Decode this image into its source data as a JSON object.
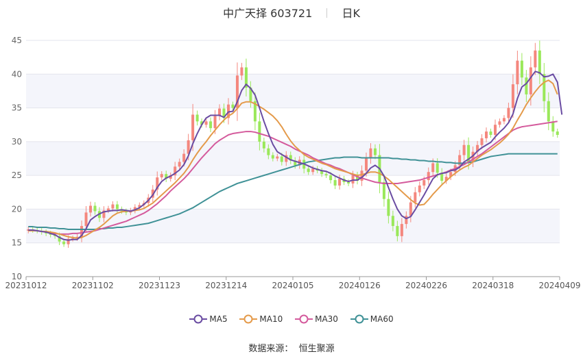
{
  "chart_data": {
    "type": "candlestick",
    "title_name": "中广天择",
    "title_code": "603721",
    "period": "日K",
    "ylim": [
      10,
      45
    ],
    "y_ticks": [
      10,
      15,
      20,
      25,
      30,
      35,
      40,
      45
    ],
    "x_tick_labels": [
      "20231012",
      "20231102",
      "20231123",
      "20231214",
      "20240105",
      "20240126",
      "20240226",
      "20240318",
      "20240409"
    ],
    "up_color": "#f4877e",
    "down_color": "#9ae85a",
    "close": [
      17.0,
      16.9,
      16.8,
      16.6,
      16.4,
      16.2,
      16.0,
      15.2,
      14.8,
      15.6,
      15.7,
      15.9,
      17.5,
      19.5,
      20.5,
      19.7,
      18.7,
      19.8,
      20.1,
      20.7,
      20.0,
      19.7,
      19.5,
      19.8,
      20.3,
      20.6,
      20.9,
      21.7,
      22.9,
      24.7,
      25.2,
      24.5,
      25.0,
      26.3,
      27.0,
      28.2,
      30.2,
      34.0,
      33.0,
      32.5,
      33.0,
      32.0,
      33.8,
      34.9,
      33.5,
      35.5,
      35.0,
      39.8,
      41.0,
      38.0,
      36.0,
      33.0,
      30.0,
      29.0,
      28.0,
      27.5,
      27.8,
      27.0,
      28.0,
      27.2,
      26.5,
      27.3,
      26.0,
      25.5,
      26.0,
      25.7,
      25.2,
      25.0,
      24.3,
      23.5,
      24.5,
      24.0,
      23.8,
      25.0,
      24.2,
      25.7,
      27.5,
      29.0,
      28.0,
      24.0,
      21.5,
      19.0,
      17.5,
      16.0,
      17.8,
      19.0,
      21.0,
      22.5,
      23.5,
      24.3,
      25.5,
      26.8,
      25.4,
      24.2,
      24.8,
      25.5,
      26.5,
      28.0,
      29.5,
      27.0,
      28.5,
      29.5,
      30.5,
      31.5,
      31.0,
      32.5,
      33.0,
      33.5,
      35.0,
      38.5,
      42.0,
      39.5,
      37.0,
      41.0,
      43.5,
      40.0,
      36.0,
      33.0,
      31.5,
      31.0
    ],
    "ma5": [
      16.9,
      16.9,
      16.8,
      16.7,
      16.6,
      16.4,
      16.2,
      15.8,
      15.5,
      15.4,
      15.5,
      15.5,
      16.1,
      17.1,
      18.4,
      18.9,
      19.3,
      19.6,
      19.7,
      19.8,
      19.8,
      19.9,
      19.8,
      19.7,
      19.9,
      20.2,
      20.7,
      21.3,
      22.1,
      23.2,
      24.1,
      24.6,
      24.9,
      25.3,
      25.8,
      26.6,
      27.9,
      29.7,
      31.2,
      32.5,
      33.5,
      33.9,
      33.9,
      33.9,
      33.6,
      34.4,
      34.5,
      35.9,
      37.6,
      38.5,
      37.9,
      36.9,
      35.0,
      33.0,
      31.2,
      29.6,
      28.5,
      28.1,
      27.7,
      27.3,
      27.1,
      26.9,
      26.7,
      26.4,
      26.1,
      25.9,
      25.7,
      25.6,
      25.3,
      24.9,
      24.6,
      24.3,
      24.1,
      24.3,
      24.3,
      24.7,
      25.3,
      26.1,
      26.5,
      26.0,
      24.9,
      23.2,
      21.5,
      20.0,
      19.0,
      18.6,
      18.9,
      19.9,
      21.0,
      22.1,
      23.3,
      24.5,
      25.1,
      25.3,
      25.4,
      25.7,
      25.8,
      26.2,
      27.0,
      27.4,
      27.9,
      28.6,
      29.1,
      29.5,
      29.9,
      30.7,
      31.4,
      32.0,
      32.8,
      34.1,
      36.4,
      38.1,
      38.6,
      39.5,
      40.4,
      40.2,
      39.6,
      39.7,
      40.0,
      38.8,
      34.0
    ],
    "ma10": [
      16.8,
      16.8,
      16.8,
      16.7,
      16.7,
      16.6,
      16.5,
      16.3,
      16.1,
      15.9,
      15.8,
      15.7,
      15.8,
      16.1,
      16.5,
      16.9,
      17.3,
      17.8,
      18.4,
      19.0,
      19.4,
      19.6,
      19.7,
      19.7,
      19.8,
      19.9,
      20.1,
      20.5,
      20.9,
      21.5,
      22.1,
      22.7,
      23.3,
      23.9,
      24.6,
      25.3,
      26.2,
      27.3,
      28.3,
      29.2,
      30.0,
      30.9,
      31.7,
      32.5,
      33.2,
      33.8,
      34.2,
      34.9,
      35.7,
      35.9,
      35.9,
      35.6,
      35.2,
      34.8,
      34.3,
      33.8,
      33.1,
      32.2,
      31.1,
      30.1,
      29.3,
      28.7,
      28.1,
      27.7,
      27.4,
      27.1,
      26.8,
      26.6,
      26.3,
      26.0,
      25.8,
      25.6,
      25.4,
      25.2,
      25.0,
      25.1,
      25.3,
      25.5,
      25.5,
      25.3,
      24.9,
      24.4,
      23.8,
      23.2,
      22.6,
      22.0,
      21.4,
      20.9,
      20.6,
      20.7,
      21.4,
      22.2,
      22.9,
      23.6,
      24.2,
      24.8,
      25.3,
      25.8,
      26.2,
      26.5,
      27.0,
      27.5,
      28.0,
      28.4,
      28.8,
      29.3,
      29.8,
      30.4,
      31.1,
      32.0,
      33.2,
      34.3,
      35.5,
      36.5,
      37.4,
      38.2,
      38.8,
      39.1,
      38.6,
      37.0
    ],
    "ma30": [
      16.9,
      16.9,
      16.8,
      16.7,
      16.6,
      16.5,
      16.4,
      16.3,
      16.3,
      16.3,
      16.4,
      16.4,
      16.5,
      16.6,
      16.7,
      16.8,
      17.0,
      17.2,
      17.4,
      17.6,
      17.8,
      18.0,
      18.2,
      18.5,
      18.8,
      19.1,
      19.4,
      19.8,
      20.3,
      20.8,
      21.4,
      22.0,
      22.7,
      23.3,
      23.9,
      24.5,
      25.2,
      26.0,
      26.8,
      27.6,
      28.3,
      29.0,
      29.7,
      30.2,
      30.6,
      31.0,
      31.2,
      31.3,
      31.4,
      31.5,
      31.5,
      31.4,
      31.2,
      31.0,
      30.8,
      30.5,
      30.2,
      29.9,
      29.6,
      29.3,
      28.9,
      28.6,
      28.3,
      28.0,
      27.6,
      27.3,
      27.0,
      26.7,
      26.5,
      26.2,
      26.0,
      25.7,
      25.4,
      25.1,
      24.8,
      24.6,
      24.4,
      24.2,
      24.0,
      23.9,
      23.8,
      23.8,
      23.8,
      23.8,
      23.9,
      24.0,
      24.1,
      24.2,
      24.3,
      24.5,
      24.7,
      24.9,
      25.1,
      25.3,
      25.5,
      25.8,
      26.0,
      26.3,
      26.6,
      27.0,
      27.4,
      27.8,
      28.2,
      28.7,
      29.2,
      29.7,
      30.2,
      30.7,
      31.2,
      31.7,
      32.0,
      32.2,
      32.3,
      32.4,
      32.5,
      32.6,
      32.7,
      32.8,
      32.9,
      33.0
    ],
    "ma60": [
      17.4,
      17.4,
      17.3,
      17.3,
      17.3,
      17.2,
      17.2,
      17.1,
      17.1,
      17.0,
      17.0,
      17.0,
      17.0,
      17.0,
      17.0,
      17.0,
      17.1,
      17.1,
      17.2,
      17.2,
      17.3,
      17.3,
      17.4,
      17.5,
      17.6,
      17.7,
      17.8,
      17.9,
      18.1,
      18.3,
      18.5,
      18.7,
      18.9,
      19.1,
      19.3,
      19.6,
      19.9,
      20.2,
      20.6,
      21.0,
      21.4,
      21.8,
      22.2,
      22.6,
      22.9,
      23.2,
      23.5,
      23.8,
      24.0,
      24.2,
      24.4,
      24.6,
      24.8,
      25.0,
      25.2,
      25.4,
      25.6,
      25.8,
      26.0,
      26.2,
      26.4,
      26.6,
      26.8,
      27.0,
      27.1,
      27.2,
      27.3,
      27.4,
      27.5,
      27.6,
      27.6,
      27.7,
      27.7,
      27.7,
      27.7,
      27.6,
      27.6,
      27.6,
      27.6,
      27.6,
      27.6,
      27.6,
      27.5,
      27.5,
      27.4,
      27.4,
      27.3,
      27.3,
      27.2,
      27.2,
      27.1,
      27.1,
      27.0,
      27.0,
      26.9,
      26.9,
      26.8,
      26.8,
      26.8,
      26.9,
      27.0,
      27.2,
      27.4,
      27.6,
      27.8,
      27.9,
      28.0,
      28.1,
      28.2,
      28.2,
      28.2,
      28.2,
      28.2,
      28.2,
      28.2,
      28.2,
      28.2,
      28.2,
      28.2,
      28.2
    ]
  },
  "legend": [
    {
      "label": "MA5",
      "color": "#6a4ca2"
    },
    {
      "label": "MA10",
      "color": "#e49a4a"
    },
    {
      "label": "MA30",
      "color": "#d45a9c"
    },
    {
      "label": "MA60",
      "color": "#3f9196"
    }
  ],
  "source_label": "数据来源：",
  "source_name": "恒生聚源"
}
